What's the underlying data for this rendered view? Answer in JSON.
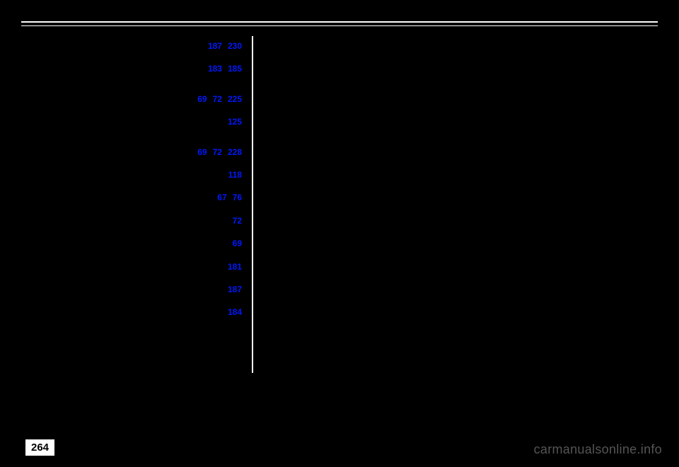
{
  "page_number": "264",
  "watermark": "carmanualsonline.info",
  "index_rows": [
    {
      "numbers": [
        "187",
        "230"
      ],
      "gap_after": false
    },
    {
      "numbers": [
        "183",
        "185"
      ],
      "gap_after": true
    },
    {
      "numbers": [
        "69",
        "72",
        "225"
      ],
      "gap_after": false
    },
    {
      "numbers": [
        "125"
      ],
      "gap_after": true
    },
    {
      "numbers": [
        "69",
        "72",
        "228"
      ],
      "gap_after": false
    },
    {
      "numbers": [
        "118"
      ],
      "gap_after": false
    },
    {
      "numbers": [
        "67",
        "76"
      ],
      "gap_after": false
    },
    {
      "numbers": [
        "72"
      ],
      "gap_after": false
    },
    {
      "numbers": [
        "69"
      ],
      "gap_after": false
    },
    {
      "numbers": [
        "181"
      ],
      "gap_after": false
    },
    {
      "numbers": [
        "187"
      ],
      "gap_after": false
    },
    {
      "numbers": [
        "184"
      ],
      "gap_after": false
    }
  ],
  "colors": {
    "link": "#0019ff",
    "bg": "#000000",
    "fg": "#ffffff"
  }
}
